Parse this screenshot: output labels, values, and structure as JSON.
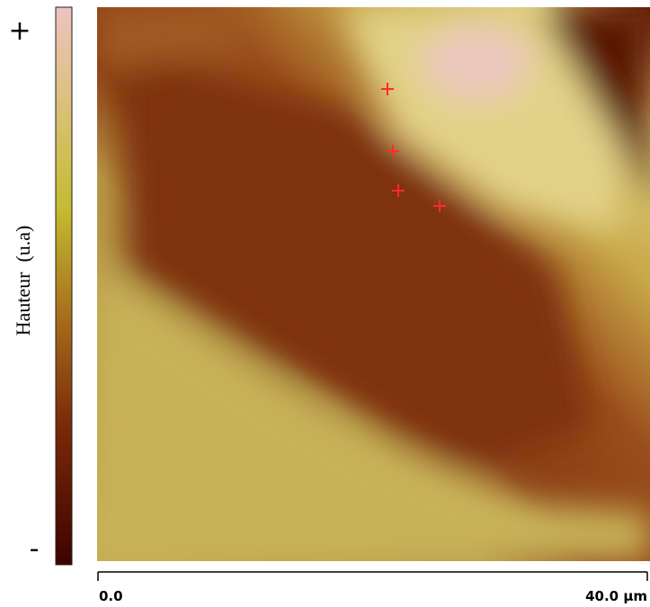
{
  "colorbar": {
    "max_label": "+",
    "min_label": "-",
    "axis_label": "Hauteur  (u.a)"
  },
  "scale_bar": {
    "start_label": "0.0",
    "end_label": "40.0 µm"
  }
}
